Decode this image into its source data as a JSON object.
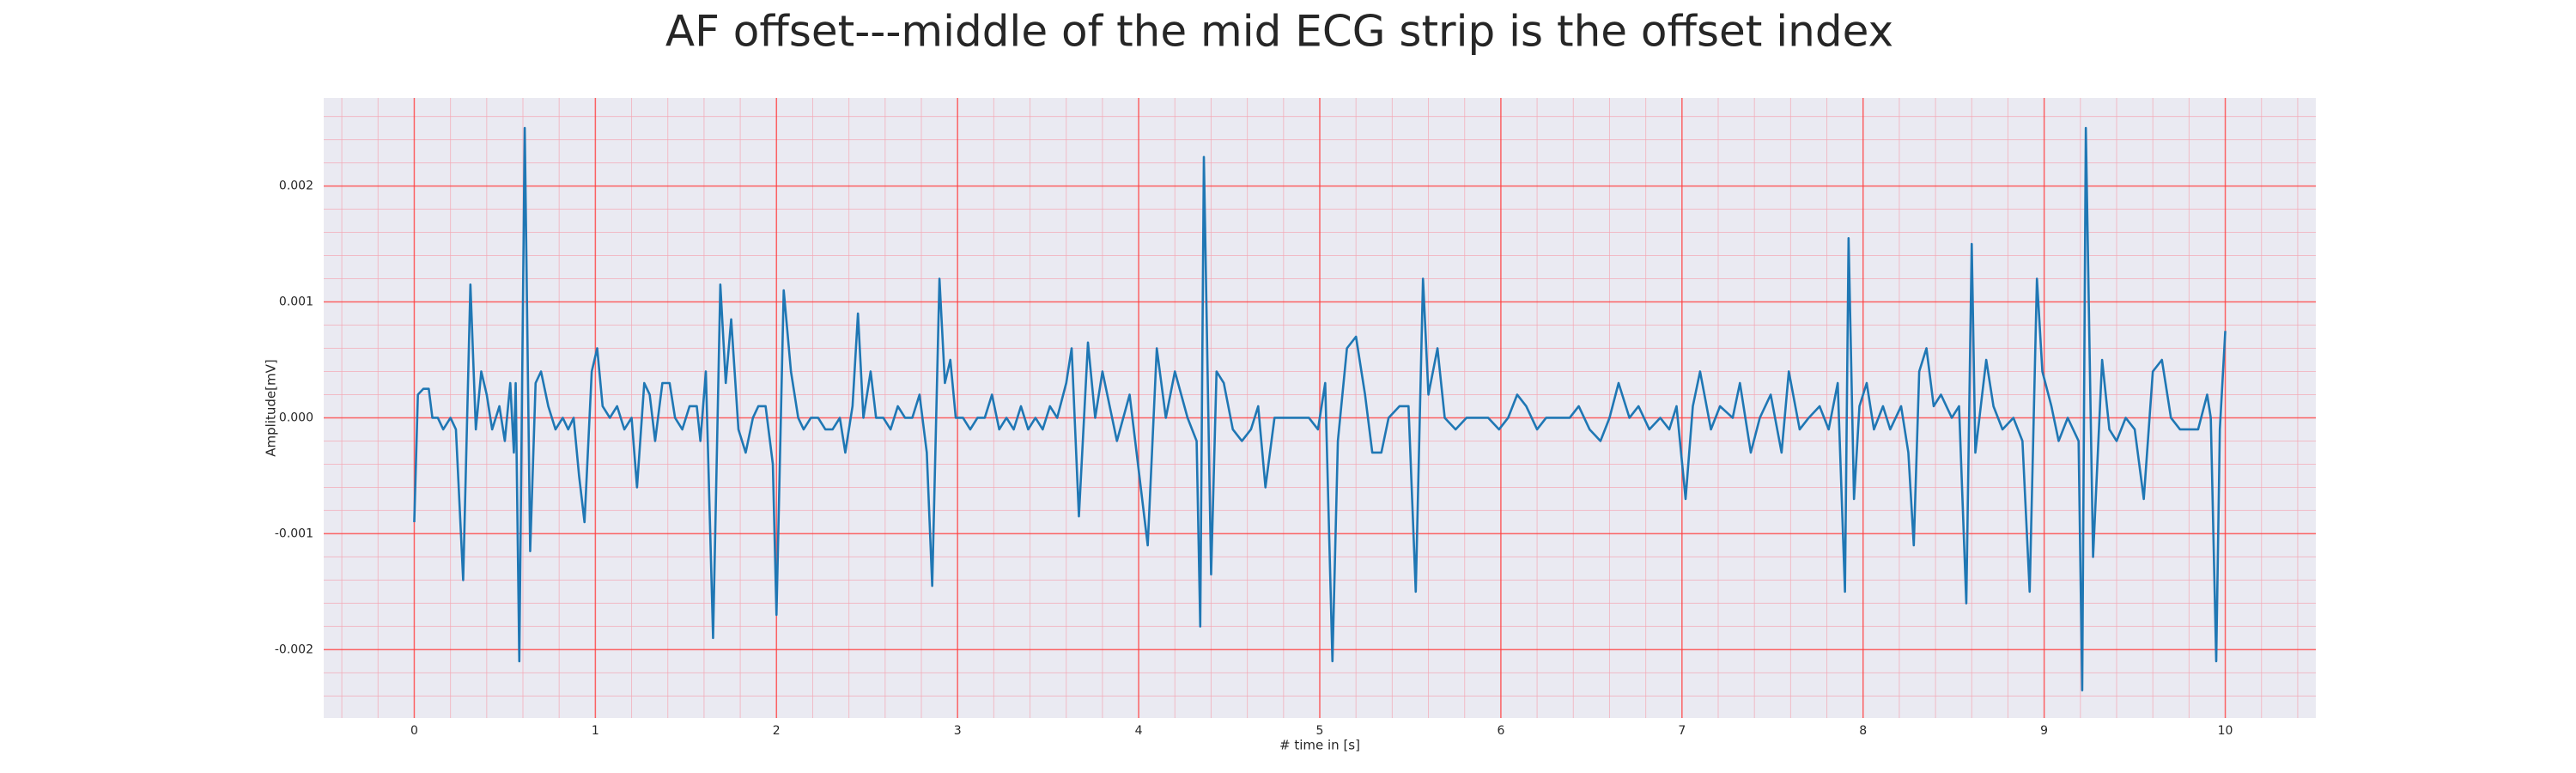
{
  "chart_data": {
    "type": "line",
    "title": "AF offset---middle of the mid ECG strip is the offset index",
    "xlabel": "# time in [s]",
    "ylabel": "Amplitude[mV]",
    "color": "#1f77b4",
    "xlim": [
      -0.5,
      10.5
    ],
    "ylim": [
      -0.00259,
      0.00276
    ],
    "xticks": [
      0,
      1,
      2,
      3,
      4,
      5,
      6,
      7,
      8,
      9,
      10
    ],
    "yticks": [
      -0.002,
      -0.001,
      {
        "value": 0,
        "label": "0.000"
      },
      0.001,
      0.002
    ],
    "xminorticks": [
      -0.4,
      -0.2,
      0.2,
      0.4,
      0.6,
      0.8,
      1.2,
      1.4,
      1.6,
      1.8,
      2.2,
      2.4,
      2.6,
      2.8,
      3.2,
      3.4,
      3.6,
      3.8,
      4.2,
      4.4,
      4.6,
      4.8,
      5.2,
      5.4,
      5.6,
      5.8,
      6.2,
      6.4,
      6.6,
      6.8,
      7.2,
      7.4,
      7.6,
      7.8,
      8.2,
      8.4,
      8.6,
      8.8,
      9.2,
      9.4,
      9.6,
      9.8,
      10.2,
      10.4
    ],
    "yminorticks": [
      -0.0024,
      -0.0022,
      -0.0018,
      -0.0016,
      -0.0014,
      -0.0012,
      -0.0008,
      -0.0006,
      -0.0004,
      -0.0002,
      0.0002,
      0.0004,
      0.0006,
      0.0008,
      0.0012,
      0.0014,
      0.0016,
      0.0018,
      0.0022,
      0.0024,
      0.0026
    ],
    "grid": true,
    "minor_grid": true,
    "x": [
      0,
      0.02,
      0.05,
      0.08,
      0.1,
      0.13,
      0.16,
      0.2,
      0.23,
      0.27,
      0.31,
      0.34,
      0.37,
      0.4,
      0.43,
      0.47,
      0.5,
      0.53,
      0.55,
      0.56,
      0.58,
      0.61,
      0.64,
      0.67,
      0.7,
      0.74,
      0.78,
      0.82,
      0.85,
      0.88,
      0.91,
      0.94,
      0.98,
      1.01,
      1.04,
      1.08,
      1.12,
      1.16,
      1.2,
      1.23,
      1.27,
      1.3,
      1.33,
      1.37,
      1.41,
      1.44,
      1.48,
      1.52,
      1.56,
      1.58,
      1.61,
      1.65,
      1.69,
      1.72,
      1.75,
      1.79,
      1.83,
      1.87,
      1.9,
      1.94,
      1.98,
      2.0,
      2.04,
      2.08,
      2.12,
      2.15,
      2.19,
      2.23,
      2.27,
      2.31,
      2.35,
      2.38,
      2.42,
      2.45,
      2.48,
      2.52,
      2.55,
      2.59,
      2.63,
      2.67,
      2.71,
      2.75,
      2.79,
      2.83,
      2.86,
      2.9,
      2.93,
      2.96,
      2.99,
      3.03,
      3.07,
      3.11,
      3.15,
      3.19,
      3.23,
      3.27,
      3.31,
      3.35,
      3.39,
      3.43,
      3.47,
      3.51,
      3.55,
      3.6,
      3.63,
      3.67,
      3.72,
      3.76,
      3.8,
      3.88,
      3.95,
      4.05,
      4.1,
      4.15,
      4.2,
      4.27,
      4.32,
      4.34,
      4.36,
      4.4,
      4.43,
      4.47,
      4.52,
      4.57,
      4.62,
      4.66,
      4.7,
      4.75,
      4.8,
      4.88,
      4.94,
      4.99,
      5.03,
      5.07,
      5.1,
      5.15,
      5.2,
      5.25,
      5.29,
      5.34,
      5.38,
      5.44,
      5.49,
      5.53,
      5.57,
      5.6,
      5.65,
      5.69,
      5.75,
      5.81,
      5.87,
      5.93,
      5.99,
      6.04,
      6.09,
      6.14,
      6.2,
      6.25,
      6.33,
      6.38,
      6.43,
      6.49,
      6.55,
      6.6,
      6.65,
      6.71,
      6.76,
      6.82,
      6.88,
      6.93,
      6.97,
      7.02,
      7.06,
      7.1,
      7.16,
      7.21,
      7.28,
      7.32,
      7.38,
      7.43,
      7.49,
      7.55,
      7.59,
      7.65,
      7.7,
      7.76,
      7.81,
      7.86,
      7.9,
      7.92,
      7.95,
      7.98,
      8.02,
      8.06,
      8.11,
      8.15,
      8.21,
      8.25,
      8.28,
      8.31,
      8.35,
      8.39,
      8.43,
      8.49,
      8.53,
      8.57,
      8.6,
      8.62,
      8.68,
      8.72,
      8.77,
      8.83,
      8.88,
      8.92,
      8.96,
      8.99,
      9.04,
      9.08,
      9.13,
      9.19,
      9.21,
      9.23,
      9.27,
      9.32,
      9.36,
      9.4,
      9.45,
      9.5,
      9.55,
      9.6,
      9.65,
      9.7,
      9.75,
      9.8,
      9.85,
      9.9,
      9.92,
      9.95,
      9.97,
      10.0
    ],
    "values": [
      -0.0009,
      0.0002,
      0.00025,
      0.00025,
      0.0,
      0.0,
      -0.0001,
      0.0,
      -0.0001,
      -0.0014,
      0.00115,
      -0.0001,
      0.0004,
      0.0002,
      -0.0001,
      0.0001,
      -0.0002,
      0.0003,
      -0.0003,
      0.0003,
      -0.0021,
      0.0025,
      -0.00115,
      0.0003,
      0.0004,
      0.0001,
      -0.0001,
      0.0,
      -0.0001,
      0.0,
      -0.0005,
      -0.0009,
      0.0004,
      0.0006,
      0.0001,
      0.0,
      0.0001,
      -0.0001,
      0.0,
      -0.0006,
      0.0003,
      0.0002,
      -0.0002,
      0.0003,
      0.0003,
      0.0,
      -0.0001,
      0.0001,
      0.0001,
      -0.0002,
      0.0004,
      -0.0019,
      0.00115,
      0.0003,
      0.00085,
      -0.0001,
      -0.0003,
      0.0,
      0.0001,
      0.0001,
      -0.0004,
      -0.0017,
      0.0011,
      0.0004,
      0.0,
      -0.0001,
      0.0,
      0.0,
      -0.0001,
      -0.0001,
      0.0,
      -0.0003,
      0.0001,
      0.0009,
      0.0,
      0.0004,
      0.0,
      0.0,
      -0.0001,
      0.0001,
      0.0,
      0.0,
      0.0002,
      -0.0003,
      -0.00145,
      0.0012,
      0.0003,
      0.0005,
      0.0,
      0.0,
      -0.0001,
      0.0,
      0.0,
      0.0002,
      -0.0001,
      0.0,
      -0.0001,
      0.0001,
      -0.0001,
      0.0,
      -0.0001,
      0.0001,
      0.0,
      0.0003,
      0.0006,
      -0.00085,
      0.00065,
      0.0,
      0.0004,
      -0.0002,
      0.0002,
      -0.0011,
      0.0006,
      0.0,
      0.0004,
      0.0,
      -0.0002,
      -0.0018,
      0.00225,
      -0.00135,
      0.0004,
      0.0003,
      -0.0001,
      -0.0002,
      -0.0001,
      0.0001,
      -0.0006,
      0.0,
      0.0,
      0.0,
      0.0,
      -0.0001,
      0.0003,
      -0.0021,
      -0.0002,
      0.0006,
      0.0007,
      0.0002,
      -0.0003,
      -0.0003,
      0.0,
      0.0001,
      0.0001,
      -0.0015,
      0.0012,
      0.0002,
      0.0006,
      0.0,
      -0.0001,
      0.0,
      0.0,
      0.0,
      -0.0001,
      0.0,
      0.0002,
      0.0001,
      -0.0001,
      0.0,
      0.0,
      0.0,
      0.0001,
      -0.0001,
      -0.0002,
      0.0,
      0.0003,
      0.0,
      0.0001,
      -0.0001,
      0.0,
      -0.0001,
      0.0001,
      -0.0007,
      0.0001,
      0.0004,
      -0.0001,
      0.0001,
      0.0,
      0.0003,
      -0.0003,
      0.0,
      0.0002,
      -0.0003,
      0.0004,
      -0.0001,
      0.0,
      0.0001,
      -0.0001,
      0.0003,
      -0.0015,
      0.00155,
      -0.0007,
      0.0001,
      0.0003,
      -0.0001,
      0.0001,
      -0.0001,
      0.0001,
      -0.0003,
      -0.0011,
      0.0004,
      0.0006,
      0.0001,
      0.0002,
      0.0,
      0.0001,
      -0.0016,
      0.0015,
      -0.0003,
      0.0005,
      0.0001,
      -0.0001,
      0.0,
      -0.0002,
      -0.0015,
      0.0012,
      0.0004,
      0.0001,
      -0.0002,
      0.0,
      -0.0002,
      -0.00235,
      0.0025,
      -0.0012,
      0.0005,
      -0.0001,
      -0.0002,
      0.0,
      -0.0001,
      -0.0007,
      0.0004,
      0.0005,
      0.0,
      -0.0001,
      -0.0001,
      -0.0001,
      0.0002,
      0.0,
      -0.0021,
      -0.0001,
      0.00075
    ]
  }
}
